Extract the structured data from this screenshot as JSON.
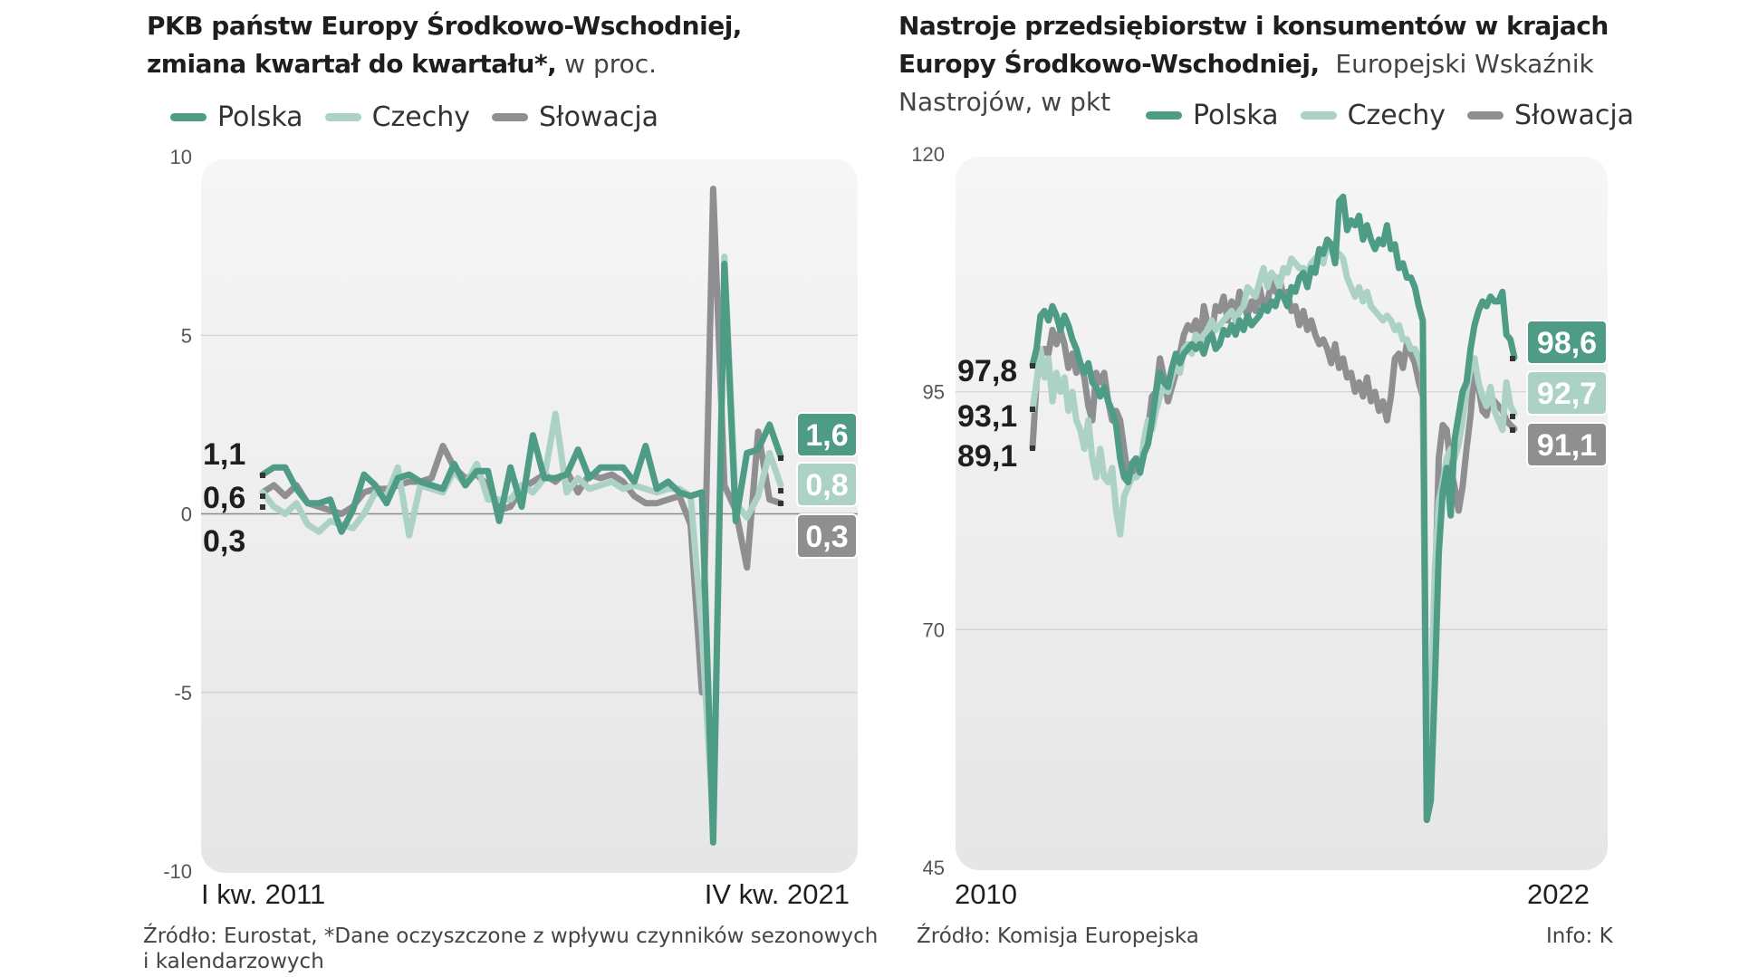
{
  "colors": {
    "polska": "#4e9b86",
    "czechy": "#abd2c4",
    "slowacja": "#8f8f91",
    "panel": "#ebebeb",
    "grid": "#d0d0d0"
  },
  "left": {
    "title_bold_1": "PKB państw Europy Środkowo-Wschodniej,",
    "title_bold_2": "zmiana kwartał do kwartału*,",
    "title_rest": "w proc.",
    "source_1": "Źródło: Eurostat, *Dane oczyszczone z wpływu czynników sezonowych",
    "source_2": "i kalendarzowych"
  },
  "right": {
    "title_bold_1": "Nastroje przedsiębiorstw i konsumentów w krajach",
    "title_bold_2": "Europy Środkowo-Wschodniej,",
    "title_rest_1": "Europejski Wskaźnik",
    "title_rest_2": "Nastrojów, w pkt",
    "source": "Źródło: Komisja Europejska",
    "info": "Info: K"
  },
  "legend": {
    "polska": "Polska",
    "czechy": "Czechy",
    "slowacja": "Słowacja"
  },
  "chart_data": [
    {
      "type": "line",
      "ylim": [
        -10,
        10
      ],
      "yticks": [
        "10",
        "5",
        "0",
        "-5",
        "-10"
      ],
      "ytick_values": [
        10,
        5,
        0,
        -5,
        -10
      ],
      "x_start_label": "I kw. 2011",
      "x_end_label": "IV kw. 2021",
      "grid": true,
      "legend": "top-left",
      "start_labels": [
        "1,1",
        "0,6",
        "0,3"
      ],
      "end_labels": {
        "polska": "1,6",
        "czechy": "0,8",
        "slowacja": "0,3"
      },
      "series": [
        {
          "name": "Polska",
          "key": "polska",
          "values": [
            1.1,
            1.3,
            1.3,
            0.7,
            0.3,
            0.3,
            0.4,
            -0.5,
            0.1,
            1.1,
            0.8,
            0.3,
            1.0,
            1.1,
            0.9,
            0.8,
            0.7,
            1.4,
            0.8,
            1.2,
            1.2,
            -0.2,
            1.3,
            0.2,
            2.2,
            1.0,
            1.0,
            1.1,
            1.8,
            1.0,
            1.3,
            1.3,
            1.3,
            0.9,
            1.9,
            0.7,
            0.9,
            0.6,
            0.5,
            0.6,
            -9.2,
            7.0,
            -0.2,
            1.7,
            1.8,
            2.5,
            1.6
          ]
        },
        {
          "name": "Czechy",
          "key": "czechy",
          "values": [
            0.6,
            0.2,
            0.0,
            0.3,
            -0.3,
            -0.5,
            -0.2,
            -0.3,
            -0.4,
            0.0,
            0.6,
            0.5,
            1.3,
            -0.6,
            0.8,
            0.7,
            0.6,
            1.2,
            0.8,
            1.4,
            0.4,
            0.4,
            0.4,
            0.8,
            0.6,
            1.0,
            2.8,
            0.6,
            1.0,
            0.7,
            0.8,
            0.9,
            0.7,
            0.8,
            0.7,
            0.6,
            0.7,
            0.7,
            0.5,
            -3.3,
            -8.7,
            7.2,
            0.3,
            -0.1,
            0.5,
            1.7,
            0.8
          ]
        },
        {
          "name": "Słowacja",
          "key": "slowacja",
          "values": [
            0.6,
            0.8,
            0.5,
            0.8,
            0.3,
            0.2,
            0.1,
            0.0,
            0.2,
            0.6,
            0.7,
            0.7,
            0.8,
            0.9,
            0.9,
            1.0,
            1.9,
            1.3,
            1.0,
            1.1,
            0.8,
            0.1,
            0.2,
            0.7,
            0.9,
            1.1,
            0.9,
            1.2,
            0.6,
            1.1,
            1.0,
            1.1,
            0.9,
            0.5,
            0.3,
            0.3,
            0.4,
            0.5,
            -0.3,
            -5.0,
            9.1,
            0.8,
            0.1,
            -1.5,
            2.3,
            0.4,
            0.3
          ]
        }
      ]
    },
    {
      "type": "line",
      "ylim": [
        45,
        120
      ],
      "yticks": [
        "120",
        "95",
        "70",
        "45"
      ],
      "ytick_values": [
        120,
        95,
        70,
        45
      ],
      "x_start_label": "2010",
      "x_end_label": "2022",
      "grid": true,
      "legend": "top-right",
      "start_labels": [
        "97,8",
        "93,1",
        "89,1"
      ],
      "end_labels": {
        "polska": "98,6",
        "czechy": "92,7",
        "slowacja": "91,1"
      },
      "series": [
        {
          "name": "Polska",
          "key": "polska",
          "values": [
            97.8,
            99.5,
            103.0,
            103.5,
            102.5,
            104.0,
            103.0,
            101.5,
            103.0,
            102.0,
            100.5,
            99.5,
            98.0,
            97.0,
            98.0,
            96.0,
            95.5,
            94.5,
            95.5,
            94.0,
            93.0,
            91.5,
            88.0,
            86.0,
            85.5,
            87.5,
            88.0,
            86.5,
            88.5,
            89.5,
            92.0,
            95.0,
            97.0,
            96.0,
            95.5,
            97.5,
            99.0,
            98.0,
            99.0,
            99.5,
            100.0,
            99.5,
            100.0,
            99.0,
            100.5,
            101.0,
            99.5,
            100.0,
            101.5,
            101.0,
            102.0,
            101.0,
            102.5,
            101.5,
            103.0,
            102.0,
            102.5,
            103.0,
            104.0,
            103.5,
            104.5,
            104.0,
            105.5,
            105.0,
            104.0,
            106.0,
            105.5,
            107.0,
            107.5,
            106.0,
            108.0,
            107.5,
            110.0,
            109.5,
            111.0,
            110.5,
            108.5,
            115.0,
            115.5,
            112.0,
            113.0,
            112.5,
            113.5,
            111.0,
            112.5,
            111.0,
            110.0,
            111.0,
            110.5,
            112.5,
            110.0,
            110.5,
            108.0,
            108.5,
            107.0,
            107.0,
            106.0,
            104.0,
            102.5,
            50.0,
            52.0,
            64.0,
            78.0,
            84.5,
            87.0,
            82.0,
            90.0,
            92.5,
            95.0,
            96.0,
            99.5,
            102.0,
            103.5,
            104.5,
            104.0,
            105.0,
            104.5,
            104.5,
            105.5,
            101.0,
            100.5,
            98.6
          ]
        },
        {
          "name": "Czechy",
          "key": "czechy",
          "values": [
            93.1,
            96.0,
            99.5,
            96.5,
            98.5,
            94.0,
            97.0,
            95.0,
            96.5,
            93.0,
            95.0,
            92.0,
            91.0,
            89.0,
            92.0,
            88.0,
            86.0,
            89.0,
            86.0,
            85.5,
            87.0,
            82.5,
            80.0,
            84.0,
            85.0,
            86.0,
            86.0,
            86.5,
            90.0,
            92.0,
            91.0,
            93.0,
            94.5,
            95.5,
            95.0,
            96.5,
            98.0,
            97.0,
            99.5,
            100.0,
            99.0,
            101.0,
            100.5,
            101.0,
            101.5,
            102.5,
            101.5,
            102.0,
            102.5,
            103.0,
            103.5,
            102.5,
            103.5,
            104.0,
            106.0,
            105.5,
            105.0,
            106.5,
            108.0,
            106.0,
            107.5,
            107.0,
            106.0,
            108.0,
            107.5,
            109.0,
            108.5,
            108.0,
            108.0,
            107.5,
            108.5,
            109.0,
            109.5,
            108.5,
            110.5,
            110.0,
            109.0,
            109.5,
            109.0,
            107.0,
            106.0,
            105.0,
            106.0,
            104.5,
            105.5,
            104.0,
            103.5,
            103.0,
            102.5,
            103.0,
            102.5,
            101.5,
            102.0,
            100.5,
            100.5,
            99.5,
            99.5,
            98.5,
            97.0,
            51.0,
            61.0,
            76.0,
            83.5,
            85.5,
            88.0,
            89.0,
            88.0,
            89.5,
            92.0,
            95.0,
            97.5,
            98.5,
            96.0,
            94.5,
            93.5,
            95.5,
            93.0,
            92.0,
            91.0,
            96.0,
            93.5,
            92.7
          ]
        },
        {
          "name": "Słowacja",
          "key": "slowacja",
          "values": [
            89.1,
            96.0,
            98.5,
            99.5,
            99.0,
            101.5,
            100.0,
            101.5,
            100.0,
            97.5,
            99.0,
            97.0,
            98.0,
            96.5,
            93.5,
            92.0,
            97.0,
            96.0,
            97.0,
            94.0,
            92.0,
            93.0,
            92.0,
            89.0,
            86.0,
            87.0,
            86.5,
            87.5,
            89.0,
            91.0,
            94.5,
            95.0,
            98.5,
            96.5,
            94.0,
            95.5,
            97.0,
            99.0,
            101.0,
            102.0,
            101.5,
            102.5,
            100.0,
            104.0,
            102.0,
            101.0,
            104.0,
            103.5,
            105.0,
            102.5,
            104.5,
            103.0,
            105.5,
            104.0,
            103.0,
            104.5,
            103.5,
            106.0,
            104.0,
            104.5,
            106.5,
            105.5,
            107.0,
            105.0,
            105.5,
            103.5,
            104.0,
            102.0,
            103.5,
            101.5,
            102.5,
            101.0,
            100.0,
            100.5,
            99.5,
            98.0,
            100.0,
            97.5,
            98.5,
            96.5,
            97.0,
            95.0,
            96.0,
            94.5,
            96.5,
            94.0,
            95.0,
            93.0,
            94.0,
            92.0,
            94.5,
            98.5,
            99.0,
            97.5,
            100.0,
            99.0,
            98.0,
            96.0,
            94.5,
            50.0,
            58.0,
            73.0,
            88.0,
            91.5,
            91.0,
            87.0,
            85.0,
            82.5,
            85.0,
            89.0,
            92.5,
            97.5,
            95.5,
            93.0,
            92.5,
            94.5,
            94.0,
            93.5,
            93.0,
            92.0,
            91.5,
            91.1
          ]
        }
      ]
    }
  ]
}
